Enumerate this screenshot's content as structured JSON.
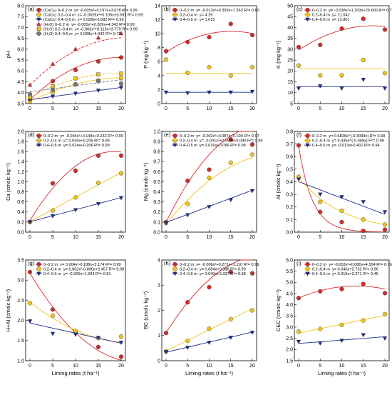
{
  "colors": {
    "red": "#d42b2b",
    "yellow": "#f2c21c",
    "blue": "#1f2d8c",
    "gray": "#7a7a7a",
    "darkred": "#a52424"
  },
  "chart_data": [
    {
      "type": "scatter",
      "panel": "(a)",
      "xlabel": "",
      "ylabel": "pH",
      "xlim": [
        0,
        20
      ],
      "ylim": [
        3.5,
        8.0
      ],
      "yticks": [
        "3.5",
        "4.0",
        "4.5",
        "5.0",
        "5.5",
        "6.0",
        "6.5",
        "7.0",
        "7.5",
        "8.0"
      ],
      "xticks": [
        "0",
        "5",
        "10",
        "15",
        "20"
      ],
      "x": [
        0,
        5,
        10,
        15,
        20
      ],
      "series": [
        {
          "name": "(CaCl₂) 0–0.2 m",
          "equation": "y= -0.005x²+0.197x+3.678 R²= 0.99",
          "color": "red",
          "marker": "circle",
          "line": "solid",
          "values": [
            3.66,
            4.53,
            5.05,
            5.44,
            5.62
          ],
          "fit": [
            -0.005,
            0.197,
            3.678
          ]
        },
        {
          "name": "(CaCl₂) 0.2–0.4 m",
          "equation": "y= -0.0025x²+0.105x+3.592 R²= 0.99",
          "color": "yellow",
          "marker": "circle",
          "line": "solid",
          "values": [
            3.6,
            4.03,
            4.38,
            4.56,
            4.67
          ],
          "fit": [
            -0.0025,
            0.105,
            3.592
          ]
        },
        {
          "name": "(CaCl₂) 0.4–0.6 m",
          "equation": "y= 0.028x+3.682 R²= 0.99",
          "color": "blue",
          "marker": "triangle-down",
          "line": "solid",
          "values": [
            3.68,
            3.83,
            3.96,
            4.1,
            4.23
          ],
          "fit": [
            0,
            0.028,
            3.682
          ]
        },
        {
          "name": "(H₂O) 0–0.2 m",
          "equation": "y= -0.005x²+0.209x+4.343 R²= 0.99",
          "color": "red",
          "marker": "triangle-up",
          "line": "dashed",
          "values": [
            4.36,
            5.32,
            6.01,
            6.53,
            6.73
          ],
          "fit": [
            -0.005,
            0.209,
            4.343
          ]
        },
        {
          "name": "(H₂O) 0.2–0.4 m",
          "equation": "y= -0.003x²+0.115x+3.779 R²= 0.99",
          "color": "yellow",
          "marker": "square",
          "line": "dashed",
          "values": [
            3.78,
            4.29,
            4.66,
            4.84,
            4.88
          ],
          "fit": [
            -0.003,
            0.115,
            3.779
          ]
        },
        {
          "name": "(H₂O) 0.4–0.6 m",
          "equation": "y= 0.028x+4.042 R²= 0.75",
          "color": "gray",
          "marker": "circle",
          "line": "dashed",
          "values": [
            3.93,
            4.13,
            4.38,
            4.53,
            4.42
          ],
          "fit": [
            0,
            0.028,
            4.042
          ]
        }
      ]
    },
    {
      "type": "scatter",
      "panel": "(b)",
      "xlabel": "",
      "ylabel": "P (mg kg⁻¹)",
      "xlim": [
        0,
        20
      ],
      "ylim": [
        0,
        14
      ],
      "yticks": [
        "0",
        "2",
        "4",
        "6",
        "8",
        "10",
        "12",
        "14"
      ],
      "xticks": [
        "0",
        "5",
        "10",
        "15",
        "20"
      ],
      "x": [
        0,
        5,
        10,
        15,
        20
      ],
      "series": [
        {
          "name": "0–0.2 m",
          "equation": "y= -0.013x²+0.393x+7.363 R²= 0.80",
          "color": "red",
          "marker": "circle",
          "line": "solid",
          "values": [
            7.5,
            8.8,
            9.5,
            11.4,
            9.8
          ],
          "fit": [
            -0.013,
            0.393,
            7.363
          ]
        },
        {
          "name": "0.2–0.4 m",
          "equation": "y= 4.29",
          "color": "yellow",
          "marker": "circle",
          "line": "solid",
          "values": [
            6.3,
            4.4,
            5.2,
            4.0,
            5.2
          ],
          "fit": [
            0,
            0,
            4.29
          ]
        },
        {
          "name": "0.4–0.6 m",
          "equation": "y= 1.615",
          "color": "blue",
          "marker": "triangle-down",
          "line": "solid",
          "values": [
            1.6,
            1.5,
            1.6,
            1.6,
            1.7
          ],
          "fit": [
            0,
            0,
            1.615
          ]
        }
      ]
    },
    {
      "type": "scatter",
      "panel": "(c)",
      "xlabel": "",
      "ylabel": "K (mg kg⁻¹)",
      "xlim": [
        0,
        20
      ],
      "ylim": [
        5,
        50
      ],
      "yticks": [
        "5",
        "10",
        "15",
        "20",
        "25",
        "30",
        "35",
        "40",
        "45",
        "50"
      ],
      "xticks": [
        "0",
        "5",
        "10",
        "15",
        "20"
      ],
      "x": [
        0,
        5,
        10,
        15,
        20
      ],
      "series": [
        {
          "name": "0–0.2 m",
          "equation": "y= -0.038x²+1.303x+29.600 R²= 0.78",
          "color": "red",
          "marker": "circle",
          "line": "solid",
          "values": [
            31.0,
            32.0,
            39.5,
            44.0,
            39.0
          ],
          "fit": [
            -0.038,
            1.303,
            29.6
          ]
        },
        {
          "name": "0.2–0.4 m",
          "equation": "y= 21.042",
          "color": "yellow",
          "marker": "circle",
          "line": "solid",
          "values": [
            22.5,
            18.0,
            18.0,
            25.0,
            19.0
          ],
          "fit": [
            0,
            0,
            21.042
          ]
        },
        {
          "name": "0.4–0.6 m",
          "equation": "y= 12.801",
          "color": "blue",
          "marker": "triangle-down",
          "line": "solid",
          "values": [
            12.0,
            13.0,
            12.0,
            16.0,
            12.0
          ],
          "fit": [
            0,
            0,
            12.801
          ]
        }
      ]
    },
    {
      "type": "scatter",
      "panel": "(d)",
      "xlabel": "",
      "ylabel": "Ca (cmolᴄ kg⁻¹)",
      "xlim": [
        0,
        20
      ],
      "ylim": [
        0,
        2.0
      ],
      "yticks": [
        "0.0",
        "0.2",
        "0.4",
        "0.6",
        "0.8",
        "1.0",
        "1.2",
        "1.4",
        "1.6",
        "1.8",
        "2.0"
      ],
      "xticks": [
        "0",
        "5",
        "10",
        "15",
        "20"
      ],
      "x": [
        0,
        5,
        10,
        15,
        20
      ],
      "series": [
        {
          "name": "0–0.2 m",
          "equation": "y= -0.004x²+0.148x+0.232 R²= 0.99",
          "color": "red",
          "marker": "circle",
          "line": "solid",
          "values": [
            0.2,
            0.97,
            1.22,
            1.52,
            1.52
          ],
          "fit": [
            -0.004,
            0.148,
            0.232
          ]
        },
        {
          "name": "0.2–0.4 m",
          "equation": "y= 0.049x+0.206 R²= 0.99",
          "color": "yellow",
          "marker": "circle",
          "line": "solid",
          "values": [
            0.2,
            0.43,
            0.69,
            0.98,
            1.17
          ],
          "fit": [
            0,
            0.049,
            0.206
          ]
        },
        {
          "name": "0.4–0.6 m",
          "equation": "y= 0.024x+0.206 R²= 0.99",
          "color": "blue",
          "marker": "triangle-down",
          "line": "solid",
          "values": [
            0.2,
            0.32,
            0.44,
            0.56,
            0.68
          ],
          "fit": [
            0,
            0.024,
            0.206
          ]
        }
      ]
    },
    {
      "type": "scatter",
      "panel": "(e)",
      "xlabel": "",
      "ylabel": "Mg (cmolᴄ kg⁻¹)",
      "xlim": [
        0,
        20
      ],
      "ylim": [
        0,
        1.0
      ],
      "yticks": [
        "0.0",
        "0.1",
        "0.2",
        "0.3",
        "0.4",
        "0.5",
        "0.6",
        "0.7",
        "0.8",
        "0.9",
        "1.0"
      ],
      "xticks": [
        "0",
        "5",
        "10",
        "15",
        "20"
      ],
      "x": [
        0,
        5,
        10,
        15,
        20
      ],
      "series": [
        {
          "name": "0–0.2 m",
          "equation": "y= -0.002x²+0.087x+0.100 R²= 0.97",
          "color": "red",
          "marker": "circle",
          "line": "solid",
          "values": [
            0.1,
            0.51,
            0.62,
            0.92,
            0.87
          ],
          "fit": [
            -0.002,
            0.087,
            0.1
          ]
        },
        {
          "name": "0.2–0.4 m",
          "equation": "y= -0.001x²+0.053x+0.080 R²= 0.99",
          "color": "yellow",
          "marker": "circle",
          "line": "solid",
          "values": [
            0.09,
            0.28,
            0.54,
            0.69,
            0.77
          ],
          "fit": [
            -0.001,
            0.053,
            0.08
          ]
        },
        {
          "name": "0.4–0.6 m",
          "equation": "y= 0.016x+0.096 R²= 0.98",
          "color": "blue",
          "marker": "triangle-down",
          "line": "solid",
          "values": [
            0.09,
            0.17,
            0.25,
            0.32,
            0.41
          ],
          "fit": [
            0,
            0.016,
            0.096
          ]
        }
      ]
    },
    {
      "type": "scatter",
      "panel": "(f)",
      "xlabel": "",
      "ylabel": "Al (cmolᴄ kg⁻¹)",
      "xlim": [
        0,
        20
      ],
      "ylim": [
        0,
        0.8
      ],
      "yticks": [
        "0.0",
        "0.1",
        "0.2",
        "0.3",
        "0.4",
        "0.5",
        "0.6",
        "0.7",
        "0.8"
      ],
      "xticks": [
        "0",
        "5",
        "10",
        "15",
        "20"
      ],
      "x": [
        0,
        5,
        10,
        15,
        20
      ],
      "series": [
        {
          "name": "0–0.2 m",
          "equation": "y= 0.6836e^(-0.3099x) R²= 0.99",
          "color": "red",
          "marker": "circle",
          "line": "solid",
          "values": [
            0.69,
            0.16,
            0.08,
            0.01,
            0.02
          ],
          "exp": [
            0.6836,
            -0.3099
          ]
        },
        {
          "name": "0.2–0.4 m",
          "equation": "y= 0.435e^(-0.099x) R²= 0.99",
          "color": "yellow",
          "marker": "circle",
          "line": "solid",
          "values": [
            0.44,
            0.24,
            0.17,
            0.1,
            0.06
          ],
          "exp": [
            0.435,
            -0.099
          ]
        },
        {
          "name": "0.4–0.6 m",
          "equation": "y= -0.013x+0.401 R²= 0.94",
          "color": "blue",
          "marker": "triangle-down",
          "line": "solid",
          "values": [
            0.42,
            0.3,
            0.28,
            0.24,
            0.16
          ],
          "fit": [
            0,
            -0.013,
            0.401
          ]
        }
      ]
    },
    {
      "type": "scatter",
      "panel": "(g)",
      "xlabel": "Liming rates (t ha⁻¹)",
      "ylabel": "H+Al (cmolᴄ kg⁻¹)",
      "xlim": [
        0,
        20
      ],
      "ylim": [
        1.0,
        3.5
      ],
      "yticks": [
        "1.0",
        "1.5",
        "2.0",
        "2.5",
        "3.0",
        "3.5"
      ],
      "xticks": [
        "0",
        "5",
        "10",
        "15",
        "20"
      ],
      "x": [
        0,
        5,
        10,
        15,
        20
      ],
      "series": [
        {
          "name": "0–0.2 m",
          "equation": "y= 0.004x²-0.188x+3.174 R²= 0.99",
          "color": "red",
          "marker": "circle",
          "line": "solid",
          "values": [
            3.2,
            2.27,
            1.71,
            1.34,
            1.1
          ],
          "fit": [
            0.004,
            -0.188,
            3.174
          ]
        },
        {
          "name": "0.2–0.4 m",
          "equation": "y= 0.002x²-0.090x+2.457 R²= 0.98",
          "color": "yellow",
          "marker": "circle",
          "line": "solid",
          "values": [
            2.43,
            2.12,
            1.74,
            1.56,
            1.6
          ],
          "fit": [
            0.002,
            -0.09,
            2.457
          ]
        },
        {
          "name": "0.4–0.6 m",
          "equation": "y= -0.025x+1.934 R²= 0.81",
          "color": "blue",
          "marker": "triangle-down",
          "line": "solid",
          "values": [
            1.98,
            1.67,
            1.65,
            1.57,
            1.45
          ],
          "fit": [
            0,
            -0.025,
            1.934
          ]
        }
      ]
    },
    {
      "type": "scatter",
      "panel": "(h)",
      "xlabel": "Liming rates (t ha⁻¹)",
      "ylabel": "BC (cmolᴄ kg⁻¹)",
      "xlim": [
        0,
        20
      ],
      "ylim": [
        0,
        4
      ],
      "yticks": [
        "0",
        "1",
        "2",
        "3",
        "4"
      ],
      "xticks": [
        "0",
        "5",
        "10",
        "15",
        "20"
      ],
      "x": [
        0,
        5,
        10,
        15,
        20
      ],
      "series": [
        {
          "name": "0–0.2 m",
          "equation": "y= -0.006x²+0.271x+1.110 R²= 0.99",
          "color": "red",
          "marker": "circle",
          "line": "solid",
          "values": [
            1.1,
            2.32,
            2.92,
            3.52,
            3.47
          ],
          "fit": [
            -0.006,
            0.271,
            1.11
          ]
        },
        {
          "name": "0.2–0.4 m",
          "equation": "y= 0.084x+0.388 R²= 0.99",
          "color": "yellow",
          "marker": "circle",
          "line": "solid",
          "values": [
            0.37,
            0.79,
            1.27,
            1.65,
            2.0
          ],
          "fit": [
            0,
            0.084,
            0.388
          ]
        },
        {
          "name": "0.4–0.6 m",
          "equation": "y= 0.040x+0.337 R²= 0.98",
          "color": "blue",
          "marker": "triangle-down",
          "line": "solid",
          "values": [
            0.35,
            0.52,
            0.72,
            0.92,
            1.12
          ],
          "fit": [
            0,
            0.04,
            0.337
          ]
        }
      ]
    },
    {
      "type": "scatter",
      "panel": "(i)",
      "xlabel": "Liming rates (t ha⁻¹)",
      "ylabel": "CEC (cmolᴄ kg⁻¹)",
      "xlim": [
        0,
        20
      ],
      "ylim": [
        1.5,
        6.0
      ],
      "yticks": [
        "1.5",
        "2.0",
        "2.5",
        "3.0",
        "3.5",
        "4.0",
        "4.5",
        "5.0",
        "5.5",
        "6.0"
      ],
      "xticks": [
        "0",
        "5",
        "10",
        "15",
        "20"
      ],
      "x": [
        0,
        5,
        10,
        15,
        20
      ],
      "series": [
        {
          "name": "0–0.2 m",
          "equation": "y= -0.003x²+0.080x+4.304 R²= 0.76",
          "color": "red",
          "marker": "circle",
          "line": "solid",
          "values": [
            4.3,
            4.6,
            4.7,
            4.93,
            4.52
          ],
          "fit": [
            -0.003,
            0.08,
            4.304
          ]
        },
        {
          "name": "0.2–0.4 m",
          "equation": "y= 0.040x+2.732 R²= 0.96",
          "color": "yellow",
          "marker": "circle",
          "line": "solid",
          "values": [
            2.8,
            2.92,
            3.1,
            3.3,
            3.58
          ],
          "fit": [
            0,
            0.04,
            2.732
          ]
        },
        {
          "name": "0.4–0.6 m",
          "equation": "y= 0.015x+2.271 R²= 0.45",
          "color": "blue",
          "marker": "triangle-down",
          "line": "solid",
          "values": [
            2.35,
            2.28,
            2.4,
            2.65,
            2.5
          ],
          "fit": [
            0,
            0.015,
            2.271
          ]
        }
      ]
    }
  ]
}
